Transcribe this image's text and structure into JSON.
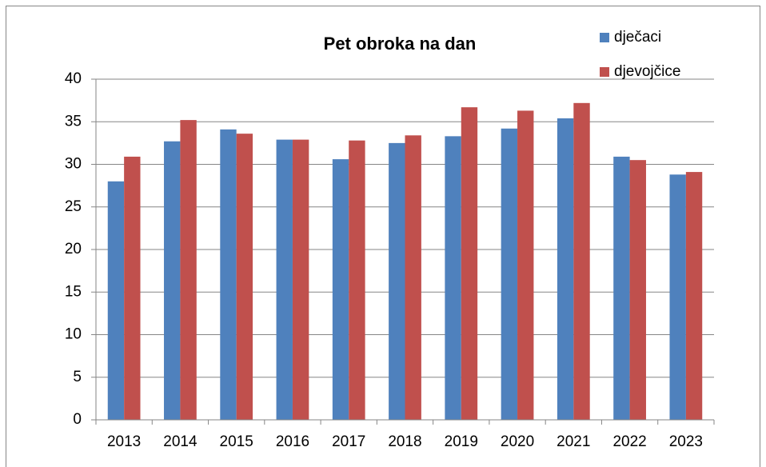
{
  "chart_data": {
    "type": "bar",
    "title": "Pet obroka na dan",
    "categories": [
      "2013",
      "2014",
      "2015",
      "2016",
      "2017",
      "2018",
      "2019",
      "2020",
      "2021",
      "2022",
      "2023"
    ],
    "series": [
      {
        "name": "dječaci",
        "color": "#4f81bd",
        "values": [
          28.0,
          32.7,
          34.1,
          32.9,
          30.6,
          32.5,
          33.3,
          34.2,
          35.4,
          30.9,
          28.8
        ]
      },
      {
        "name": "djevojčice",
        "color": "#c0504d",
        "values": [
          30.9,
          35.2,
          33.6,
          32.9,
          32.8,
          33.4,
          36.7,
          36.3,
          37.2,
          30.5,
          29.1
        ]
      }
    ],
    "ylim": [
      0,
      40
    ],
    "yticks": [
      0,
      5,
      10,
      15,
      20,
      25,
      30,
      35,
      40
    ],
    "grid": true,
    "legend": "top-right"
  }
}
